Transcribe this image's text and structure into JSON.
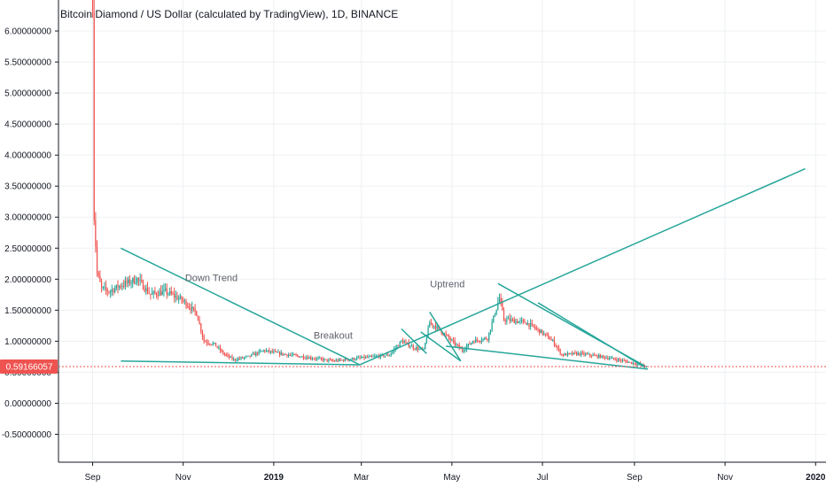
{
  "header": {
    "title": "Bitcoin Diamond / US Dollar (calculated by TradingView), 1D, BINANCE"
  },
  "colors": {
    "up": "#26a69a",
    "down": "#ef5350",
    "trendline": "#26a69a",
    "grid": "#eef0f3",
    "price_line": "#ef5350",
    "axis": "#131722"
  },
  "chart_data": {
    "type": "candlestick",
    "title": "Bitcoin Diamond / US Dollar (calculated by TradingView), 1D, BINANCE",
    "xlabel": "",
    "ylabel": "",
    "ylim": [
      -0.95,
      6.5
    ],
    "xlim": [
      "2018-08-09",
      "2020-01-08"
    ],
    "grid": true,
    "y_ticks": [
      "6.00000000",
      "5.50000000",
      "5.00000000",
      "4.50000000",
      "4.00000000",
      "3.50000000",
      "3.00000000",
      "2.50000000",
      "2.00000000",
      "1.50000000",
      "1.00000000",
      "0.50000000",
      "0.00000000",
      "-0.50000000"
    ],
    "y_tick_values": [
      6.0,
      5.5,
      5.0,
      4.5,
      4.0,
      3.5,
      3.0,
      2.5,
      2.0,
      1.5,
      1.0,
      0.5,
      0.0,
      -0.5
    ],
    "x_ticks": [
      {
        "label": "Sep",
        "date": "2018-09-01",
        "bold": false
      },
      {
        "label": "Nov",
        "date": "2018-11-01",
        "bold": false
      },
      {
        "label": "2019",
        "date": "2019-01-01",
        "bold": true
      },
      {
        "label": "Mar",
        "date": "2019-03-01",
        "bold": false
      },
      {
        "label": "May",
        "date": "2019-05-01",
        "bold": false
      },
      {
        "label": "Jul",
        "date": "2019-07-01",
        "bold": false
      },
      {
        "label": "Sep",
        "date": "2019-09-01",
        "bold": false
      },
      {
        "label": "Nov",
        "date": "2019-11-01",
        "bold": false
      },
      {
        "label": "2020",
        "date": "2020-01-01",
        "bold": true
      }
    ],
    "last_price": 0.59166057,
    "last_price_label": "0.59166057",
    "price_path": [
      [
        "2018-09-01",
        6.5
      ],
      [
        "2018-09-02",
        3.0
      ],
      [
        "2018-09-04",
        2.1
      ],
      [
        "2018-09-07",
        1.85
      ],
      [
        "2018-09-12",
        1.8
      ],
      [
        "2018-09-20",
        1.9
      ],
      [
        "2018-10-01",
        2.0
      ],
      [
        "2018-10-10",
        1.75
      ],
      [
        "2018-10-20",
        1.8
      ],
      [
        "2018-11-01",
        1.65
      ],
      [
        "2018-11-10",
        1.45
      ],
      [
        "2018-11-15",
        1.0
      ],
      [
        "2018-11-22",
        0.95
      ],
      [
        "2018-11-28",
        0.8
      ],
      [
        "2018-12-05",
        0.7
      ],
      [
        "2018-12-15",
        0.75
      ],
      [
        "2018-12-25",
        0.85
      ],
      [
        "2019-01-05",
        0.8
      ],
      [
        "2019-01-20",
        0.75
      ],
      [
        "2019-02-10",
        0.68
      ],
      [
        "2019-02-25",
        0.72
      ],
      [
        "2019-03-10",
        0.75
      ],
      [
        "2019-03-20",
        0.78
      ],
      [
        "2019-03-28",
        1.0
      ],
      [
        "2019-04-05",
        0.9
      ],
      [
        "2019-04-12",
        0.85
      ],
      [
        "2019-04-16",
        1.3
      ],
      [
        "2019-04-22",
        1.2
      ],
      [
        "2019-05-01",
        1.0
      ],
      [
        "2019-05-08",
        0.85
      ],
      [
        "2019-05-15",
        1.0
      ],
      [
        "2019-05-25",
        1.05
      ],
      [
        "2019-06-02",
        1.7
      ],
      [
        "2019-06-05",
        1.35
      ],
      [
        "2019-06-20",
        1.3
      ],
      [
        "2019-06-30",
        1.15
      ],
      [
        "2019-07-08",
        1.0
      ],
      [
        "2019-07-14",
        0.78
      ],
      [
        "2019-07-25",
        0.8
      ],
      [
        "2019-08-10",
        0.75
      ],
      [
        "2019-08-25",
        0.68
      ],
      [
        "2019-09-05",
        0.62
      ],
      [
        "2019-09-09",
        0.59166057
      ]
    ],
    "trendlines": [
      {
        "from": [
          "2018-09-20",
          2.5
        ],
        "to": [
          "2019-02-28",
          0.62
        ]
      },
      {
        "from": [
          "2018-09-20",
          0.68
        ],
        "to": [
          "2019-02-28",
          0.62
        ]
      },
      {
        "from": [
          "2019-02-28",
          0.62
        ],
        "to": [
          "2019-12-25",
          3.78
        ]
      },
      {
        "from": [
          "2019-03-28",
          1.2
        ],
        "to": [
          "2019-04-14",
          0.8
        ]
      },
      {
        "from": [
          "2019-04-16",
          1.47
        ],
        "to": [
          "2019-05-07",
          0.68
        ]
      },
      {
        "from": [
          "2019-04-10",
          1.15
        ],
        "to": [
          "2019-05-07",
          0.68
        ]
      },
      {
        "from": [
          "2019-04-27",
          0.92
        ],
        "to": [
          "2019-09-10",
          0.55
        ]
      },
      {
        "from": [
          "2019-06-01",
          1.93
        ],
        "to": [
          "2019-09-08",
          0.6
        ]
      },
      {
        "from": [
          "2019-06-28",
          1.62
        ],
        "to": [
          "2019-09-08",
          0.58
        ]
      }
    ],
    "annotations": [
      {
        "text": "Down Trend",
        "date": "2018-11-20",
        "value": 1.97
      },
      {
        "text": "Breakout",
        "date": "2019-02-10",
        "value": 1.04
      },
      {
        "text": "Uptrend",
        "date": "2019-04-28",
        "value": 1.87
      }
    ]
  }
}
